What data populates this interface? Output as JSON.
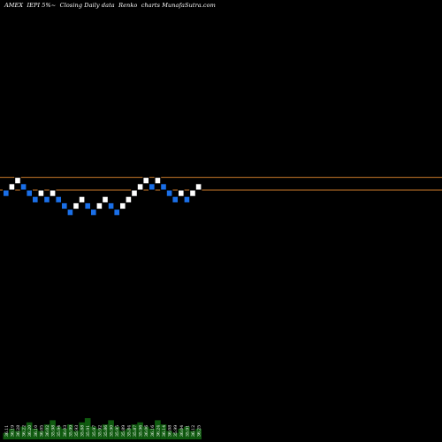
{
  "title": "AMEX  IEPI 5%~  Closing Daily data  Renko  charts MunafaSutra.com",
  "colors": {
    "background": "#000000",
    "up_brick": "#ffffff",
    "down_brick": "#1a6fe8",
    "brick_border": "#000000",
    "reference_line": "#c8782a",
    "volume": "#0f5a0f",
    "label": "#ffffff"
  },
  "chart_data": {
    "type": "renko",
    "bricks": [
      {
        "level": 0,
        "direction": "down"
      },
      {
        "level": 1,
        "direction": "up"
      },
      {
        "level": 2,
        "direction": "up"
      },
      {
        "level": 1,
        "direction": "down"
      },
      {
        "level": 0,
        "direction": "down"
      },
      {
        "level": -1,
        "direction": "down"
      },
      {
        "level": 0,
        "direction": "up"
      },
      {
        "level": -1,
        "direction": "down"
      },
      {
        "level": 0,
        "direction": "up"
      },
      {
        "level": -1,
        "direction": "down"
      },
      {
        "level": -2,
        "direction": "down"
      },
      {
        "level": -3,
        "direction": "down"
      },
      {
        "level": -2,
        "direction": "up"
      },
      {
        "level": -1,
        "direction": "up"
      },
      {
        "level": -2,
        "direction": "down"
      },
      {
        "level": -3,
        "direction": "down"
      },
      {
        "level": -2,
        "direction": "up"
      },
      {
        "level": -1,
        "direction": "up"
      },
      {
        "level": -2,
        "direction": "down"
      },
      {
        "level": -3,
        "direction": "down"
      },
      {
        "level": -2,
        "direction": "up"
      },
      {
        "level": -1,
        "direction": "up"
      },
      {
        "level": 0,
        "direction": "up"
      },
      {
        "level": 1,
        "direction": "up"
      },
      {
        "level": 2,
        "direction": "up"
      },
      {
        "level": 1,
        "direction": "down"
      },
      {
        "level": 2,
        "direction": "up"
      },
      {
        "level": 1,
        "direction": "down"
      },
      {
        "level": 0,
        "direction": "down"
      },
      {
        "level": -1,
        "direction": "down"
      },
      {
        "level": 0,
        "direction": "up"
      },
      {
        "level": -1,
        "direction": "down"
      },
      {
        "level": 0,
        "direction": "up"
      },
      {
        "level": 1,
        "direction": "up"
      }
    ],
    "reference_lines": [
      {
        "level": 2.5
      },
      {
        "level": 0.5
      }
    ],
    "volume_labels": [
      "36.11",
      "36.19",
      "36.28",
      "36.22",
      "36.20",
      "36.10",
      "36.05",
      "36.02",
      "35.98",
      "35.94",
      "36.03",
      "35.99",
      "35.93",
      "35.88",
      "35.91",
      "35.97",
      "35.92",
      "35.86",
      "35.90",
      "35.95",
      "35.89",
      "35.84",
      "35.87",
      "35.96",
      "36.06",
      "36.16",
      "36.24",
      "36.14",
      "36.08",
      "35.99",
      "36.04",
      "35.91",
      "36.12",
      "36.25"
    ],
    "volume_levels": [
      0.3,
      0.5,
      0.4,
      0.6,
      0.8,
      0.5,
      0.4,
      0.7,
      0.9,
      0.6,
      0.5,
      0.7,
      0.4,
      0.8,
      1.0,
      0.6,
      0.5,
      0.7,
      0.9,
      0.6,
      0.4,
      0.5,
      0.7,
      0.8,
      0.6,
      0.5,
      0.9,
      0.7,
      0.4,
      0.3,
      0.5,
      0.6,
      0.4,
      0.5
    ]
  }
}
